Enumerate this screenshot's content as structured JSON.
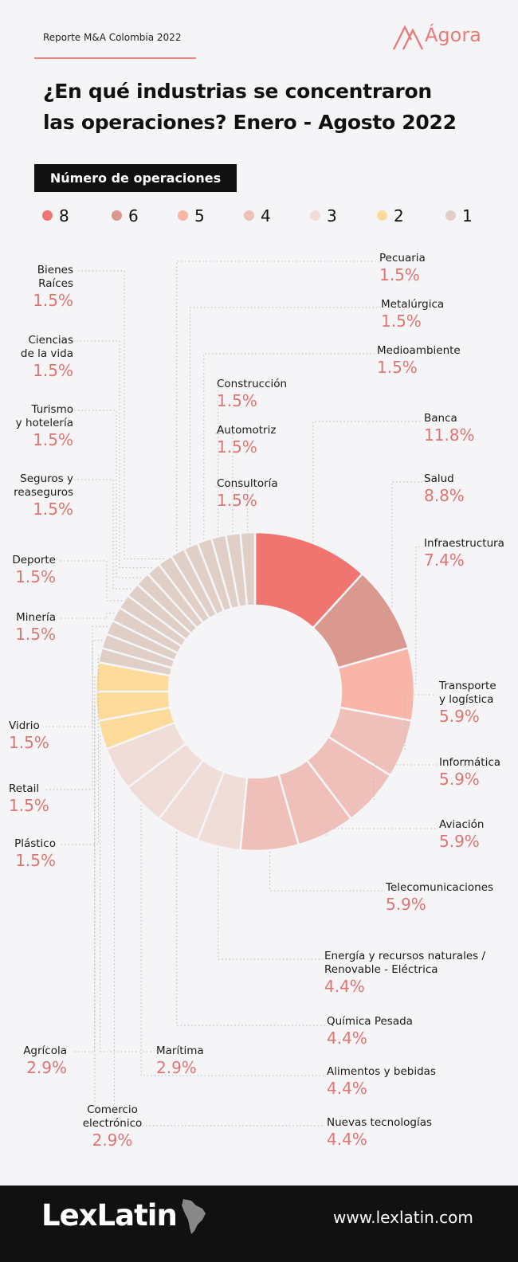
{
  "header": {
    "report": "Reporte M&A Colombia 2022",
    "brand": "Ágora"
  },
  "title_lines": [
    "¿En qué industrias se concentraron",
    "las operaciones? Enero - Agosto 2022"
  ],
  "subtitle": "Número de operaciones",
  "legend": [
    {
      "label": "8",
      "color": "#f07470"
    },
    {
      "label": "6",
      "color": "#d9998f"
    },
    {
      "label": "5",
      "color": "#f9b5a8"
    },
    {
      "label": "4",
      "color": "#eec0b9"
    },
    {
      "label": "3",
      "color": "#f1ddd8"
    },
    {
      "label": "2",
      "color": "#fddb9b"
    },
    {
      "label": "1",
      "color": "#e0cfc6"
    }
  ],
  "chart_data": {
    "type": "pie",
    "subtype": "donut",
    "slices": [
      {
        "name": "Banca",
        "value": 8,
        "pct": "11.8%",
        "color": "#f07470"
      },
      {
        "name": "Salud",
        "value": 6,
        "pct": "8.8%",
        "color": "#d9998f"
      },
      {
        "name": "Infraestructura",
        "value": 5,
        "pct": "7.4%",
        "color": "#f9b5a8"
      },
      {
        "name": "Transporte y logística",
        "value": 4,
        "pct": "5.9%",
        "color": "#eec0b9"
      },
      {
        "name": "Informática",
        "value": 4,
        "pct": "5.9%",
        "color": "#eec0b9"
      },
      {
        "name": "Aviación",
        "value": 4,
        "pct": "5.9%",
        "color": "#eec0b9"
      },
      {
        "name": "Telecomunicaciones",
        "value": 4,
        "pct": "5.9%",
        "color": "#eec0b9"
      },
      {
        "name": "Energía y recursos naturales / Renovable - Eléctrica",
        "value": 3,
        "pct": "4.4%",
        "color": "#f1ddd8"
      },
      {
        "name": "Química Pesada",
        "value": 3,
        "pct": "4.4%",
        "color": "#f1ddd8"
      },
      {
        "name": "Alimentos y bebidas",
        "value": 3,
        "pct": "4.4%",
        "color": "#f1ddd8"
      },
      {
        "name": "Nuevas tecnologías",
        "value": 3,
        "pct": "4.4%",
        "color": "#f1ddd8"
      },
      {
        "name": "Marítima",
        "value": 2,
        "pct": "2.9%",
        "color": "#fddb9b"
      },
      {
        "name": "Comercio electrónico",
        "value": 2,
        "pct": "2.9%",
        "color": "#fddb9b"
      },
      {
        "name": "Agrícola",
        "value": 2,
        "pct": "2.9%",
        "color": "#fddb9b"
      },
      {
        "name": "Plástico",
        "value": 1,
        "pct": "1.5%",
        "color": "#e0cfc6"
      },
      {
        "name": "Retail",
        "value": 1,
        "pct": "1.5%",
        "color": "#e0cfc6"
      },
      {
        "name": "Vidrio",
        "value": 1,
        "pct": "1.5%",
        "color": "#e0cfc6"
      },
      {
        "name": "Minería",
        "value": 1,
        "pct": "1.5%",
        "color": "#e0cfc6"
      },
      {
        "name": "Deporte",
        "value": 1,
        "pct": "1.5%",
        "color": "#e0cfc6"
      },
      {
        "name": "Seguros y reaseguros",
        "value": 1,
        "pct": "1.5%",
        "color": "#e0cfc6"
      },
      {
        "name": "Turismo y hotelería",
        "value": 1,
        "pct": "1.5%",
        "color": "#e0cfc6"
      },
      {
        "name": "Ciencias de la vida",
        "value": 1,
        "pct": "1.5%",
        "color": "#e0cfc6"
      },
      {
        "name": "Bienes Raíces",
        "value": 1,
        "pct": "1.5%",
        "color": "#e0cfc6"
      },
      {
        "name": "Pecuaria",
        "value": 1,
        "pct": "1.5%",
        "color": "#e0cfc6"
      },
      {
        "name": "Metalúrgica",
        "value": 1,
        "pct": "1.5%",
        "color": "#e0cfc6"
      },
      {
        "name": "Medioambiente",
        "value": 1,
        "pct": "1.5%",
        "color": "#e0cfc6"
      },
      {
        "name": "Construcción",
        "value": 1,
        "pct": "1.5%",
        "color": "#e0cfc6"
      },
      {
        "name": "Automotriz",
        "value": 1,
        "pct": "1.5%",
        "color": "#e0cfc6"
      },
      {
        "name": "Consultoría",
        "value": 1,
        "pct": "1.5%",
        "color": "#e0cfc6"
      }
    ]
  },
  "labels": [
    {
      "line1": "Pecuaria",
      "line2": "",
      "pct": "1.5%"
    },
    {
      "line1": "Metalúrgica",
      "line2": "",
      "pct": "1.5%"
    },
    {
      "line1": "Medioambiente",
      "line2": "",
      "pct": "1.5%"
    },
    {
      "line1": "Construcción",
      "line2": "",
      "pct": "1.5%"
    },
    {
      "line1": "Automotriz",
      "line2": "",
      "pct": "1.5%"
    },
    {
      "line1": "Consultoría",
      "line2": "",
      "pct": "1.5%"
    },
    {
      "line1": "Banca",
      "line2": "",
      "pct": "11.8%"
    },
    {
      "line1": "Salud",
      "line2": "",
      "pct": "8.8%"
    },
    {
      "line1": "Infraestructura",
      "line2": "",
      "pct": "7.4%"
    },
    {
      "line1": "Transporte",
      "line2": "y logística",
      "pct": "5.9%"
    },
    {
      "line1": "Informática",
      "line2": "",
      "pct": "5.9%"
    },
    {
      "line1": "Aviación",
      "line2": "",
      "pct": "5.9%"
    },
    {
      "line1": "Telecomunicaciones",
      "line2": "",
      "pct": "5.9%"
    },
    {
      "line1": "Energía y recursos naturales /",
      "line2": "Renovable - Eléctrica",
      "pct": "4.4%"
    },
    {
      "line1": "Química Pesada",
      "line2": "",
      "pct": "4.4%"
    },
    {
      "line1": "Alimentos y bebidas",
      "line2": "",
      "pct": "4.4%"
    },
    {
      "line1": "Nuevas tecnologías",
      "line2": "",
      "pct": "4.4%"
    },
    {
      "line1": "Bienes",
      "line2": "Raíces",
      "pct": "1.5%"
    },
    {
      "line1": "Ciencias",
      "line2": "de la vida",
      "pct": "1.5%"
    },
    {
      "line1": "Turismo",
      "line2": "y hotelería",
      "pct": "1.5%"
    },
    {
      "line1": "Seguros y",
      "line2": "reaseguros",
      "pct": "1.5%"
    },
    {
      "line1": "Deporte",
      "line2": "",
      "pct": "1.5%"
    },
    {
      "line1": "Minería",
      "line2": "",
      "pct": "1.5%"
    },
    {
      "line1": "Vidrio",
      "line2": "",
      "pct": "1.5%"
    },
    {
      "line1": "Retail",
      "line2": "",
      "pct": "1.5%"
    },
    {
      "line1": "Plástico",
      "line2": "",
      "pct": "1.5%"
    },
    {
      "line1": "Agrícola",
      "line2": "",
      "pct": "2.9%"
    },
    {
      "line1": "Marítima",
      "line2": "",
      "pct": "2.9%"
    },
    {
      "line1": "Comercio",
      "line2": "electrónico",
      "pct": "2.9%"
    }
  ],
  "footer": {
    "brand": "LexLatin",
    "site": "www.lexlatin.com"
  }
}
